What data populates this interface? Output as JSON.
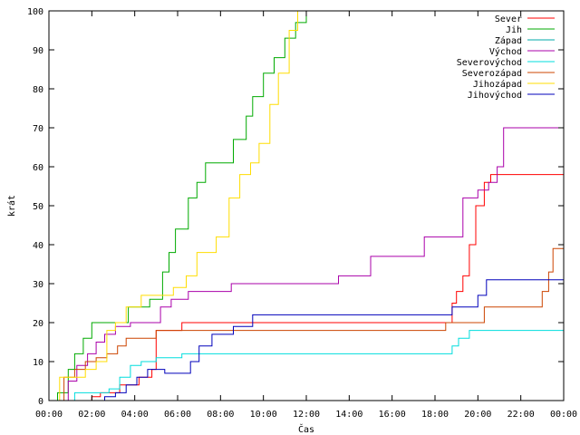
{
  "chart_data": {
    "type": "line",
    "xlabel": "Čas",
    "ylabel": "krát",
    "xlim": [
      0,
      24
    ],
    "ylim": [
      0,
      100
    ],
    "x_ticks": [
      0,
      2,
      4,
      6,
      8,
      10,
      12,
      14,
      16,
      18,
      20,
      22,
      24
    ],
    "x_tick_labels": [
      "00:00",
      "02:00",
      "04:00",
      "06:00",
      "08:00",
      "10:00",
      "12:00",
      "14:00",
      "16:00",
      "18:00",
      "20:00",
      "22:00",
      "00:00"
    ],
    "y_ticks": [
      0,
      10,
      20,
      30,
      40,
      50,
      60,
      70,
      80,
      90,
      100
    ],
    "grid": false,
    "legend_position": "top-right",
    "series": [
      {
        "name": "Sever",
        "color": "#ff0000",
        "step": true,
        "x": [
          0,
          1.5,
          2.0,
          2.4,
          3.3,
          4.2,
          4.8,
          5.0,
          6.2,
          9.0,
          14.0,
          18.5,
          18.8,
          19.0,
          19.3,
          19.6,
          19.9,
          20.3,
          20.6,
          24
        ],
        "y": [
          0,
          0,
          1,
          2,
          4,
          6,
          8,
          18,
          20,
          20,
          20,
          20,
          25,
          28,
          32,
          40,
          50,
          56,
          58,
          58
        ]
      },
      {
        "name": "Jih",
        "color": "#00aa00",
        "step": true,
        "x": [
          0,
          0.4,
          0.9,
          1.2,
          1.6,
          2.0,
          3.7,
          4.7,
          5.3,
          5.6,
          5.9,
          6.5,
          6.9,
          7.3,
          7.8,
          8.6,
          9.2,
          9.5,
          10.0,
          10.5,
          11.0,
          11.5,
          12.0,
          12.4,
          24
        ],
        "y": [
          0,
          2,
          8,
          12,
          16,
          20,
          24,
          26,
          33,
          38,
          44,
          52,
          56,
          61,
          61,
          67,
          73,
          78,
          84,
          88,
          93,
          97,
          100,
          100,
          100
        ]
      },
      {
        "name": "Západ",
        "color": "#00aaaa",
        "step": true,
        "x": [
          0,
          1.0,
          24
        ],
        "y": [
          0,
          0,
          0
        ]
      },
      {
        "name": "Východ",
        "color": "#aa00aa",
        "step": true,
        "x": [
          0,
          0.9,
          1.3,
          1.8,
          2.2,
          2.6,
          3.1,
          3.8,
          4.5,
          5.2,
          5.7,
          6.5,
          8.5,
          11.0,
          13.5,
          15.0,
          17.0,
          17.5,
          18.5,
          19.3,
          20.0,
          20.5,
          20.9,
          21.2,
          24
        ],
        "y": [
          0,
          5,
          9,
          12,
          15,
          17,
          19,
          20,
          20,
          24,
          26,
          28,
          30,
          30,
          32,
          37,
          37,
          42,
          42,
          52,
          54,
          56,
          60,
          70,
          70
        ]
      },
      {
        "name": "Severovýchod",
        "color": "#00dddd",
        "step": true,
        "x": [
          0,
          1.2,
          2.0,
          2.8,
          3.3,
          3.8,
          4.3,
          5.0,
          6.2,
          7.0,
          12.0,
          18.5,
          18.8,
          19.1,
          19.6,
          24
        ],
        "y": [
          0,
          2,
          2,
          3,
          6,
          9,
          10,
          11,
          12,
          12,
          12,
          12,
          14,
          16,
          18,
          18
        ]
      },
      {
        "name": "Severozápad",
        "color": "#cc4400",
        "step": true,
        "x": [
          0,
          0.7,
          1.2,
          1.7,
          2.2,
          2.7,
          3.2,
          3.6,
          5.0,
          9.0,
          14.0,
          18.5,
          20.3,
          22.5,
          23.0,
          23.3,
          23.5,
          24
        ],
        "y": [
          0,
          6,
          8,
          10,
          11,
          12,
          14,
          16,
          18,
          18,
          18,
          20,
          24,
          24,
          28,
          33,
          39,
          39
        ]
      },
      {
        "name": "Jihozápad",
        "color": "#ffdd00",
        "step": true,
        "x": [
          0,
          0.5,
          1.1,
          1.7,
          2.2,
          2.7,
          3.1,
          3.6,
          4.3,
          5.0,
          5.8,
          6.4,
          6.9,
          7.4,
          7.8,
          8.4,
          8.9,
          9.4,
          9.8,
          10.3,
          10.7,
          11.2,
          11.6,
          24
        ],
        "y": [
          0,
          6,
          6,
          8,
          10,
          18,
          20,
          24,
          27,
          27,
          29,
          32,
          38,
          38,
          42,
          52,
          58,
          61,
          66,
          76,
          84,
          95,
          100,
          100
        ]
      },
      {
        "name": "Jihovýchod",
        "color": "#0000bb",
        "step": true,
        "x": [
          0,
          2.0,
          2.6,
          3.1,
          3.6,
          4.1,
          4.6,
          5.4,
          6.3,
          6.6,
          7.0,
          7.6,
          8.6,
          9.5,
          13.0,
          17.5,
          18.8,
          19.2,
          20.0,
          20.4,
          24
        ],
        "y": [
          0,
          0,
          1,
          2,
          4,
          6,
          8,
          7,
          7,
          10,
          14,
          17,
          19,
          22,
          22,
          22,
          24,
          24,
          27,
          31,
          31
        ]
      }
    ]
  }
}
